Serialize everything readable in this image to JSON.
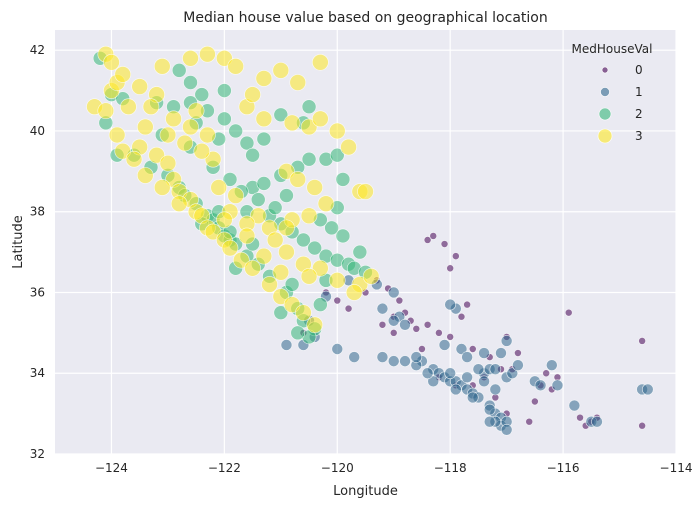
{
  "chart_data": {
    "type": "scatter",
    "title": "Median house value based on geographical location",
    "xlabel": "Longitude",
    "ylabel": "Latitude",
    "xlim": [
      -125,
      -114
    ],
    "ylim": [
      32,
      42.5
    ],
    "xticks": [
      -124,
      -122,
      -120,
      -118,
      -116,
      -114
    ],
    "yticks": [
      32,
      34,
      36,
      38,
      40,
      42
    ],
    "xtick_labels": [
      "−124",
      "−122",
      "−120",
      "−118",
      "−116",
      "−114"
    ],
    "ytick_labels": [
      "32",
      "34",
      "36",
      "38",
      "40",
      "42"
    ],
    "grid": true,
    "legend": {
      "title": "MedHouseVal",
      "placement": "top-right",
      "entries": [
        "0",
        "1",
        "2",
        "3"
      ]
    },
    "series": [
      {
        "name": "0",
        "color": "#440154",
        "points": [
          [
            -119.3,
            36.3
          ],
          [
            -119.1,
            36.1
          ],
          [
            -118.9,
            35.8
          ],
          [
            -118.8,
            35.5
          ],
          [
            -118.7,
            35.3
          ],
          [
            -119.0,
            35.4
          ],
          [
            -118.4,
            35.2
          ],
          [
            -118.2,
            35.0
          ],
          [
            -118.0,
            34.9
          ],
          [
            -117.6,
            34.6
          ],
          [
            -117.3,
            34.4
          ],
          [
            -117.1,
            34.1
          ],
          [
            -116.9,
            34.1
          ],
          [
            -117.4,
            33.9
          ],
          [
            -117.6,
            33.7
          ],
          [
            -117.2,
            33.4
          ],
          [
            -117.0,
            33.0
          ],
          [
            -116.6,
            32.8
          ],
          [
            -116.4,
            33.7
          ],
          [
            -116.2,
            33.6
          ],
          [
            -115.7,
            32.9
          ],
          [
            -115.5,
            32.8
          ],
          [
            -115.4,
            32.9
          ],
          [
            -114.6,
            32.7
          ],
          [
            -114.6,
            34.8
          ],
          [
            -115.9,
            35.5
          ],
          [
            -118.1,
            37.2
          ],
          [
            -117.9,
            36.9
          ],
          [
            -118.4,
            37.3
          ],
          [
            -118.3,
            37.4
          ],
          [
            -119.5,
            36.0
          ],
          [
            -120.0,
            35.8
          ],
          [
            -119.8,
            35.6
          ],
          [
            -120.6,
            35.0
          ],
          [
            -119.0,
            35.0
          ],
          [
            -118.5,
            34.6
          ],
          [
            -116.8,
            34.5
          ],
          [
            -117.8,
            35.4
          ],
          [
            -117.7,
            35.7
          ],
          [
            -118.0,
            36.6
          ],
          [
            -116.3,
            34.0
          ],
          [
            -116.1,
            33.9
          ],
          [
            -116.5,
            33.3
          ],
          [
            -117.9,
            33.7
          ],
          [
            -118.2,
            33.9
          ],
          [
            -117.0,
            34.9
          ],
          [
            -115.6,
            32.7
          ],
          [
            -119.2,
            35.2
          ],
          [
            -118.6,
            35.1
          ],
          [
            -120.2,
            36.0
          ]
        ]
      },
      {
        "name": "1",
        "color": "#31688e",
        "points": [
          [
            -118.3,
            34.1
          ],
          [
            -118.2,
            34.0
          ],
          [
            -118.1,
            33.9
          ],
          [
            -118.0,
            33.8
          ],
          [
            -117.9,
            33.8
          ],
          [
            -117.8,
            33.7
          ],
          [
            -117.7,
            33.6
          ],
          [
            -117.6,
            33.5
          ],
          [
            -117.3,
            33.2
          ],
          [
            -117.2,
            33.0
          ],
          [
            -117.1,
            32.9
          ],
          [
            -117.1,
            32.7
          ],
          [
            -117.0,
            32.8
          ],
          [
            -117.2,
            32.8
          ],
          [
            -117.3,
            33.1
          ],
          [
            -117.4,
            34.0
          ],
          [
            -117.3,
            34.1
          ],
          [
            -117.2,
            34.1
          ],
          [
            -117.5,
            34.1
          ],
          [
            -117.0,
            33.9
          ],
          [
            -116.9,
            34.0
          ],
          [
            -116.5,
            33.8
          ],
          [
            -116.4,
            33.7
          ],
          [
            -116.2,
            34.2
          ],
          [
            -115.8,
            33.2
          ],
          [
            -115.5,
            32.8
          ],
          [
            -114.6,
            33.6
          ],
          [
            -118.5,
            34.3
          ],
          [
            -118.6,
            34.2
          ],
          [
            -118.8,
            34.3
          ],
          [
            -119.0,
            34.3
          ],
          [
            -119.2,
            34.4
          ],
          [
            -119.7,
            34.4
          ],
          [
            -120.0,
            34.6
          ],
          [
            -120.4,
            34.9
          ],
          [
            -120.5,
            35.3
          ],
          [
            -120.6,
            34.7
          ],
          [
            -118.9,
            35.4
          ],
          [
            -119.0,
            35.3
          ],
          [
            -119.3,
            36.2
          ],
          [
            -119.2,
            35.6
          ],
          [
            -119.0,
            36.0
          ],
          [
            -118.8,
            35.2
          ],
          [
            -118.1,
            34.7
          ],
          [
            -117.8,
            34.6
          ],
          [
            -117.9,
            35.6
          ],
          [
            -118.0,
            35.7
          ],
          [
            -117.7,
            34.4
          ],
          [
            -117.4,
            34.5
          ],
          [
            -117.0,
            34.8
          ],
          [
            -116.8,
            34.2
          ],
          [
            -117.5,
            33.4
          ],
          [
            -117.6,
            33.4
          ],
          [
            -117.9,
            33.6
          ],
          [
            -118.3,
            33.8
          ],
          [
            -118.4,
            34.0
          ],
          [
            -118.0,
            34.0
          ],
          [
            -117.7,
            33.9
          ],
          [
            -117.4,
            33.8
          ],
          [
            -117.2,
            33.6
          ],
          [
            -120.2,
            35.9
          ],
          [
            -119.8,
            36.3
          ],
          [
            -116.1,
            33.7
          ],
          [
            -115.4,
            32.8
          ],
          [
            -114.5,
            33.6
          ],
          [
            -118.6,
            34.4
          ],
          [
            -117.1,
            34.5
          ],
          [
            -120.9,
            34.7
          ],
          [
            -117.3,
            32.8
          ],
          [
            -117.0,
            32.6
          ]
        ]
      },
      {
        "name": "2",
        "color": "#35b779",
        "points": [
          [
            -124.2,
            41.8
          ],
          [
            -124.0,
            40.9
          ],
          [
            -123.8,
            40.8
          ],
          [
            -124.1,
            40.2
          ],
          [
            -123.9,
            39.4
          ],
          [
            -123.6,
            39.4
          ],
          [
            -123.3,
            39.1
          ],
          [
            -123.0,
            38.9
          ],
          [
            -122.8,
            38.6
          ],
          [
            -122.7,
            38.4
          ],
          [
            -122.5,
            38.2
          ],
          [
            -122.3,
            37.9
          ],
          [
            -122.2,
            37.8
          ],
          [
            -122.1,
            37.6
          ],
          [
            -122.0,
            37.4
          ],
          [
            -121.9,
            37.3
          ],
          [
            -121.8,
            37.2
          ],
          [
            -121.6,
            36.9
          ],
          [
            -121.8,
            36.6
          ],
          [
            -121.4,
            36.7
          ],
          [
            -121.2,
            36.4
          ],
          [
            -120.9,
            36.0
          ],
          [
            -120.7,
            35.6
          ],
          [
            -120.6,
            35.3
          ],
          [
            -120.4,
            35.1
          ],
          [
            -121.5,
            38.6
          ],
          [
            -121.3,
            38.7
          ],
          [
            -121.0,
            38.9
          ],
          [
            -120.7,
            39.1
          ],
          [
            -120.5,
            39.3
          ],
          [
            -120.2,
            39.3
          ],
          [
            -120.0,
            39.4
          ],
          [
            -121.6,
            39.7
          ],
          [
            -121.8,
            40.0
          ],
          [
            -122.0,
            40.3
          ],
          [
            -122.3,
            40.5
          ],
          [
            -122.4,
            40.9
          ],
          [
            -122.6,
            41.2
          ],
          [
            -122.0,
            41.0
          ],
          [
            -122.5,
            40.2
          ],
          [
            -121.2,
            37.9
          ],
          [
            -121.0,
            37.7
          ],
          [
            -120.8,
            37.5
          ],
          [
            -120.6,
            37.3
          ],
          [
            -120.4,
            37.1
          ],
          [
            -120.2,
            36.9
          ],
          [
            -120.0,
            36.8
          ],
          [
            -119.8,
            36.7
          ],
          [
            -119.7,
            36.6
          ],
          [
            -119.5,
            36.5
          ],
          [
            -119.9,
            37.4
          ],
          [
            -120.1,
            37.6
          ],
          [
            -120.3,
            37.8
          ],
          [
            -120.0,
            38.1
          ],
          [
            -119.9,
            38.8
          ],
          [
            -122.9,
            40.6
          ],
          [
            -122.6,
            39.6
          ],
          [
            -122.2,
            39.1
          ],
          [
            -121.9,
            38.8
          ],
          [
            -121.7,
            38.5
          ],
          [
            -121.4,
            38.3
          ],
          [
            -121.1,
            38.1
          ],
          [
            -120.9,
            38.4
          ],
          [
            -121.6,
            38.0
          ],
          [
            -122.4,
            37.7
          ],
          [
            -122.1,
            38.0
          ],
          [
            -121.9,
            37.5
          ],
          [
            -121.5,
            37.2
          ],
          [
            -120.8,
            36.2
          ],
          [
            -120.3,
            35.7
          ],
          [
            -122.8,
            41.5
          ],
          [
            -123.2,
            40.7
          ],
          [
            -122.1,
            39.8
          ],
          [
            -121.5,
            39.4
          ],
          [
            -121.3,
            39.8
          ],
          [
            -120.6,
            40.2
          ],
          [
            -120.5,
            40.6
          ],
          [
            -121.0,
            40.4
          ],
          [
            -122.6,
            40.7
          ],
          [
            -123.1,
            39.9
          ],
          [
            -120.5,
            34.9
          ],
          [
            -120.7,
            35.0
          ],
          [
            -121.0,
            35.5
          ],
          [
            -120.2,
            36.3
          ],
          [
            -119.6,
            37.0
          ]
        ]
      },
      {
        "name": "3",
        "color": "#fde725",
        "points": [
          [
            -124.3,
            40.6
          ],
          [
            -124.1,
            40.5
          ],
          [
            -124.0,
            41.0
          ],
          [
            -123.9,
            41.2
          ],
          [
            -123.7,
            40.6
          ],
          [
            -124.1,
            41.9
          ],
          [
            -124.0,
            41.7
          ],
          [
            -123.8,
            41.4
          ],
          [
            -123.5,
            41.1
          ],
          [
            -123.2,
            40.9
          ],
          [
            -123.9,
            39.9
          ],
          [
            -123.8,
            39.5
          ],
          [
            -123.5,
            39.6
          ],
          [
            -123.2,
            39.4
          ],
          [
            -123.0,
            39.2
          ],
          [
            -122.9,
            38.8
          ],
          [
            -122.8,
            38.5
          ],
          [
            -122.6,
            38.3
          ],
          [
            -122.5,
            38.0
          ],
          [
            -122.4,
            37.9
          ],
          [
            -122.3,
            37.6
          ],
          [
            -122.2,
            37.5
          ],
          [
            -122.0,
            37.3
          ],
          [
            -121.9,
            37.1
          ],
          [
            -121.7,
            36.8
          ],
          [
            -121.5,
            36.6
          ],
          [
            -121.2,
            36.2
          ],
          [
            -121.0,
            35.9
          ],
          [
            -120.8,
            35.7
          ],
          [
            -120.6,
            35.5
          ],
          [
            -120.4,
            35.2
          ],
          [
            -122.6,
            41.8
          ],
          [
            -122.3,
            41.9
          ],
          [
            -122.0,
            41.8
          ],
          [
            -121.8,
            41.6
          ],
          [
            -121.3,
            41.3
          ],
          [
            -121.0,
            41.5
          ],
          [
            -121.6,
            40.6
          ],
          [
            -121.3,
            40.3
          ],
          [
            -120.8,
            40.2
          ],
          [
            -120.5,
            40.1
          ],
          [
            -120.3,
            40.3
          ],
          [
            -120.0,
            40.0
          ],
          [
            -119.8,
            39.6
          ],
          [
            -119.6,
            38.5
          ],
          [
            -120.9,
            39.0
          ],
          [
            -120.7,
            38.8
          ],
          [
            -120.4,
            38.6
          ],
          [
            -120.2,
            38.2
          ],
          [
            -120.5,
            37.9
          ],
          [
            -120.8,
            37.8
          ],
          [
            -120.9,
            37.6
          ],
          [
            -121.2,
            37.6
          ],
          [
            -121.4,
            37.9
          ],
          [
            -121.8,
            38.4
          ],
          [
            -122.1,
            38.6
          ],
          [
            -122.2,
            39.3
          ],
          [
            -122.3,
            39.9
          ],
          [
            -122.6,
            40.1
          ],
          [
            -122.9,
            40.3
          ],
          [
            -123.3,
            40.6
          ],
          [
            -123.4,
            40.1
          ],
          [
            -123.0,
            39.9
          ],
          [
            -122.7,
            39.7
          ],
          [
            -122.4,
            39.5
          ],
          [
            -121.9,
            38.0
          ],
          [
            -121.6,
            37.7
          ],
          [
            -121.1,
            37.3
          ],
          [
            -120.9,
            37.0
          ],
          [
            -120.6,
            36.7
          ],
          [
            -120.3,
            36.6
          ],
          [
            -120.0,
            36.3
          ],
          [
            -119.6,
            36.2
          ],
          [
            -119.4,
            36.4
          ],
          [
            -119.7,
            36.0
          ],
          [
            -120.5,
            36.4
          ],
          [
            -121.0,
            36.5
          ],
          [
            -121.3,
            36.9
          ],
          [
            -121.6,
            37.4
          ],
          [
            -122.0,
            37.8
          ],
          [
            -122.8,
            38.2
          ],
          [
            -123.1,
            38.6
          ],
          [
            -123.4,
            38.9
          ],
          [
            -123.6,
            39.3
          ],
          [
            -123.1,
            41.6
          ],
          [
            -122.5,
            40.5
          ],
          [
            -121.5,
            40.9
          ],
          [
            -120.7,
            41.2
          ],
          [
            -120.3,
            41.7
          ],
          [
            -119.5,
            38.5
          ]
        ]
      }
    ]
  }
}
